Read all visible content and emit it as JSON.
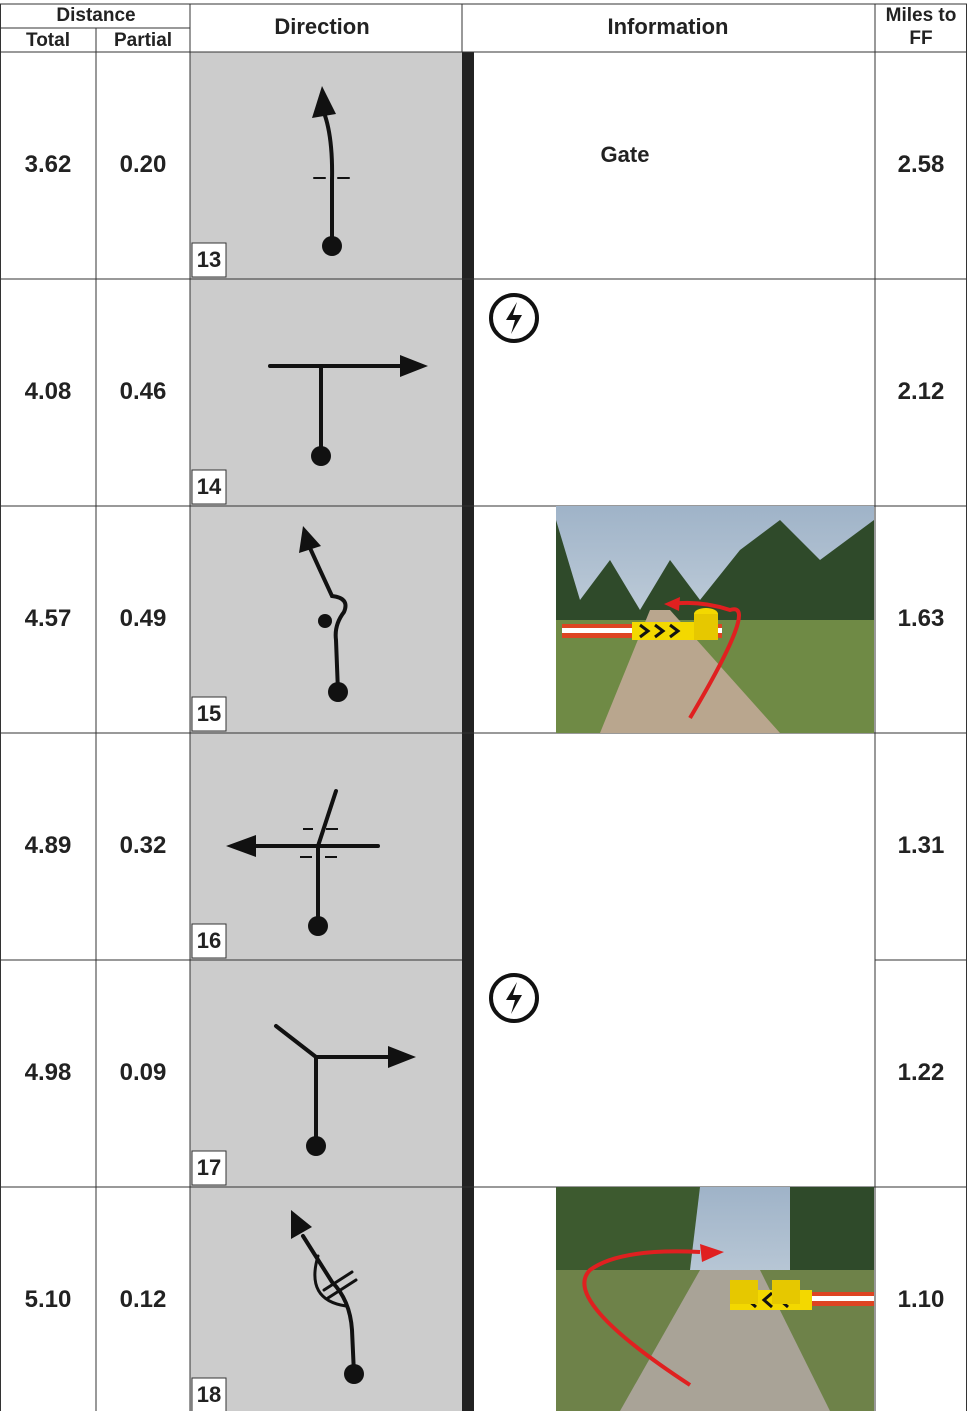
{
  "header": {
    "distance": "Distance",
    "total": "Total",
    "partial": "Partial",
    "direction": "Direction",
    "information": "Information",
    "miles_to_ff": [
      "Miles to",
      "FF"
    ]
  },
  "rows": [
    {
      "total": "3.62",
      "partial": "0.20",
      "number": "13",
      "information": "Gate",
      "miles_to_ff": "2.58"
    },
    {
      "total": "4.08",
      "partial": "0.46",
      "number": "14",
      "miles_to_ff": "2.12"
    },
    {
      "total": "4.57",
      "partial": "0.49",
      "number": "15",
      "miles_to_ff": "1.63"
    },
    {
      "total": "4.89",
      "partial": "0.32",
      "number": "16",
      "miles_to_ff": "1.31"
    },
    {
      "total": "4.98",
      "partial": "0.09",
      "number": "17",
      "miles_to_ff": "1.22"
    },
    {
      "total": "5.10",
      "partial": "0.12",
      "number": "18",
      "miles_to_ff": "1.10"
    }
  ]
}
